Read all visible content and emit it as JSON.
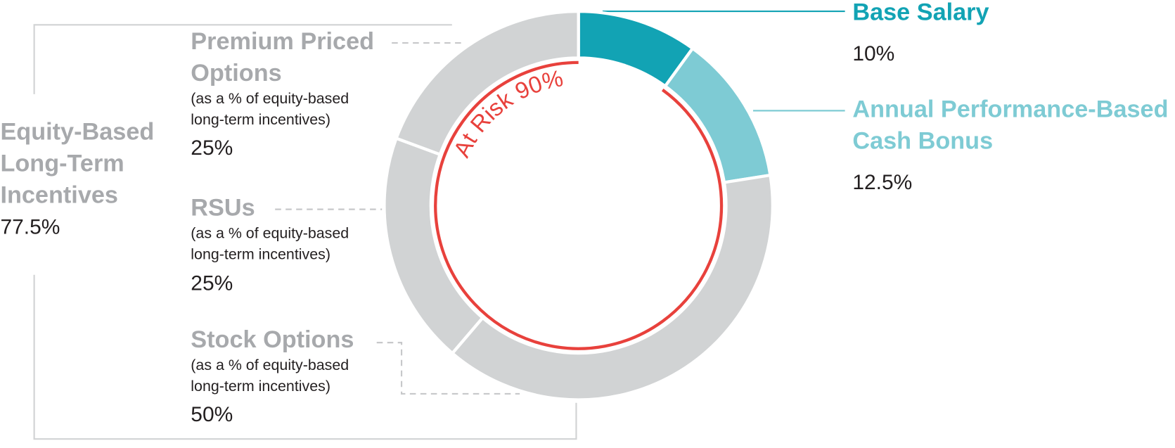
{
  "chart_data": {
    "type": "donut",
    "center_label": "At Risk 90%",
    "at_risk": 90,
    "at_risk_color": "#e8413c",
    "series": [
      {
        "name": [
          "Base Salary"
        ],
        "color": "#12a3b4",
        "value": 10,
        "value_label": "10%"
      },
      {
        "name": [
          "Annual Performance-Based",
          "Cash Bonus"
        ],
        "color": "#7ecbd4",
        "value": 12.5,
        "value_label": "12.5%"
      },
      {
        "name": [
          "Equity-Based",
          "Long-Term",
          "Incentives"
        ],
        "color": "#d1d3d4",
        "label_color": "#a7a9ac",
        "value": 77.5,
        "value_label": "77.5%",
        "parts": [
          {
            "name": [
              "Premium Priced",
              "Options"
            ],
            "note": [
              "(as a % of equity-based",
              "long-term incentives)"
            ],
            "value": 25,
            "value_label": "25%"
          },
          {
            "name": [
              "RSUs"
            ],
            "note": [
              "(as a % of equity-based",
              "long-term incentives)"
            ],
            "value": 25,
            "value_label": "25%"
          },
          {
            "name": [
              "Stock Options"
            ],
            "note": [
              "(as a % of equity-based",
              "long-term incentives)"
            ],
            "value": 50,
            "value_label": "50%"
          }
        ]
      }
    ]
  }
}
